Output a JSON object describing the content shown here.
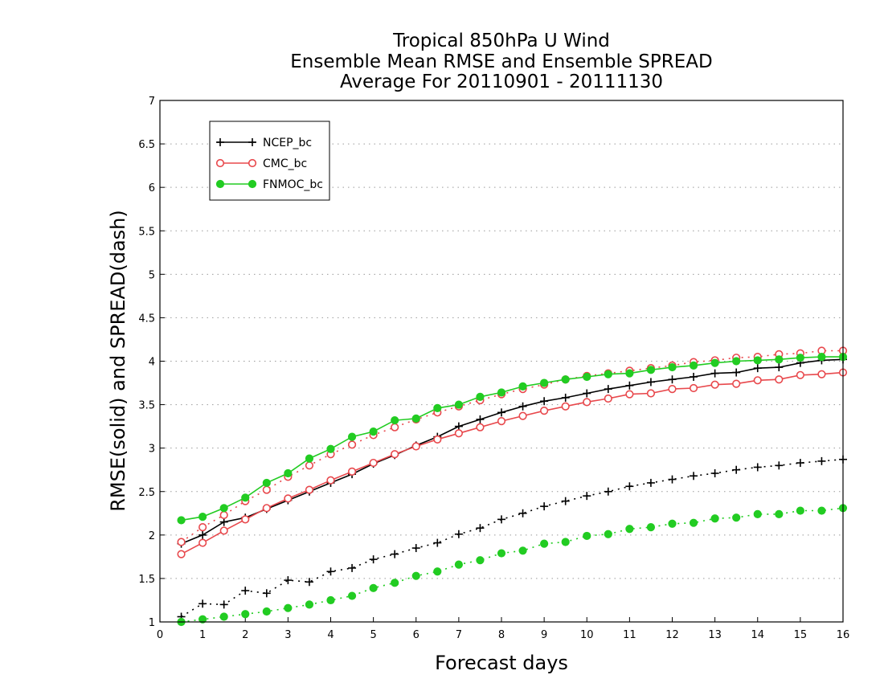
{
  "chart_data": {
    "type": "line",
    "title_lines": [
      "Tropical 850hPa U Wind",
      "Ensemble Mean RMSE and Ensemble SPREAD",
      "Average For 20110901 - 20111130"
    ],
    "xlabel": "Forecast days",
    "ylabel": "RMSE(solid) and SPREAD(dash)",
    "xlim": [
      0,
      16
    ],
    "ylim": [
      1,
      7
    ],
    "x_ticks": [
      0,
      1,
      2,
      3,
      4,
      5,
      6,
      7,
      8,
      9,
      10,
      11,
      12,
      13,
      14,
      15,
      16
    ],
    "y_ticks": [
      1,
      1.5,
      2,
      2.5,
      3,
      3.5,
      4,
      4.5,
      5,
      5.5,
      6,
      6.5,
      7
    ],
    "grid": "horizontal dotted",
    "legend_position": "top-left",
    "x": [
      0.5,
      1,
      1.5,
      2,
      2.5,
      3,
      3.5,
      4,
      4.5,
      5,
      5.5,
      6,
      6.5,
      7,
      7.5,
      8,
      8.5,
      9,
      9.5,
      10,
      10.5,
      11,
      11.5,
      12,
      12.5,
      13,
      13.5,
      14,
      14.5,
      15,
      15.5,
      16
    ],
    "series": [
      {
        "name": "NCEP_bc",
        "color": "#000000",
        "marker": "plus",
        "rmse": [
          1.9,
          2.0,
          2.15,
          2.2,
          2.3,
          2.4,
          2.5,
          2.6,
          2.7,
          2.82,
          2.92,
          3.03,
          3.13,
          3.25,
          3.33,
          3.41,
          3.48,
          3.54,
          3.58,
          3.63,
          3.68,
          3.72,
          3.76,
          3.79,
          3.82,
          3.86,
          3.87,
          3.92,
          3.93,
          3.98,
          4.01,
          4.02
        ],
        "spread": [
          1.06,
          1.21,
          1.2,
          1.36,
          1.33,
          1.48,
          1.46,
          1.58,
          1.62,
          1.72,
          1.78,
          1.85,
          1.91,
          2.01,
          2.08,
          2.18,
          2.25,
          2.33,
          2.39,
          2.45,
          2.5,
          2.56,
          2.6,
          2.64,
          2.68,
          2.71,
          2.75,
          2.78,
          2.8,
          2.83,
          2.85,
          2.87
        ]
      },
      {
        "name": "CMC_bc",
        "color": "#e8484c",
        "marker": "circle-open",
        "rmse": [
          1.78,
          1.91,
          2.05,
          2.18,
          2.31,
          2.42,
          2.52,
          2.63,
          2.73,
          2.83,
          2.93,
          3.02,
          3.1,
          3.17,
          3.24,
          3.31,
          3.37,
          3.43,
          3.48,
          3.53,
          3.57,
          3.62,
          3.63,
          3.68,
          3.69,
          3.73,
          3.74,
          3.78,
          3.79,
          3.84,
          3.85,
          3.87
        ],
        "spread": [
          1.92,
          2.09,
          2.23,
          2.39,
          2.52,
          2.67,
          2.8,
          2.93,
          3.04,
          3.15,
          3.24,
          3.33,
          3.41,
          3.48,
          3.55,
          3.62,
          3.68,
          3.73,
          3.79,
          3.83,
          3.86,
          3.89,
          3.92,
          3.95,
          3.99,
          4.01,
          4.04,
          4.05,
          4.08,
          4.09,
          4.12,
          4.12
        ]
      },
      {
        "name": "FNMOC_bc",
        "color": "#22cc22",
        "marker": "circle-filled",
        "rmse": [
          2.17,
          2.21,
          2.31,
          2.43,
          2.6,
          2.71,
          2.88,
          2.99,
          3.13,
          3.19,
          3.32,
          3.34,
          3.46,
          3.5,
          3.59,
          3.64,
          3.71,
          3.75,
          3.79,
          3.82,
          3.85,
          3.86,
          3.9,
          3.93,
          3.95,
          3.98,
          4.0,
          4.01,
          4.02,
          4.04,
          4.05,
          4.05
        ],
        "spread": [
          1.0,
          1.03,
          1.06,
          1.09,
          1.12,
          1.16,
          1.2,
          1.25,
          1.3,
          1.39,
          1.45,
          1.53,
          1.58,
          1.66,
          1.71,
          1.79,
          1.82,
          1.9,
          1.92,
          1.99,
          2.01,
          2.07,
          2.09,
          2.13,
          2.14,
          2.19,
          2.2,
          2.24,
          2.24,
          2.28,
          2.28,
          2.31
        ]
      }
    ]
  }
}
